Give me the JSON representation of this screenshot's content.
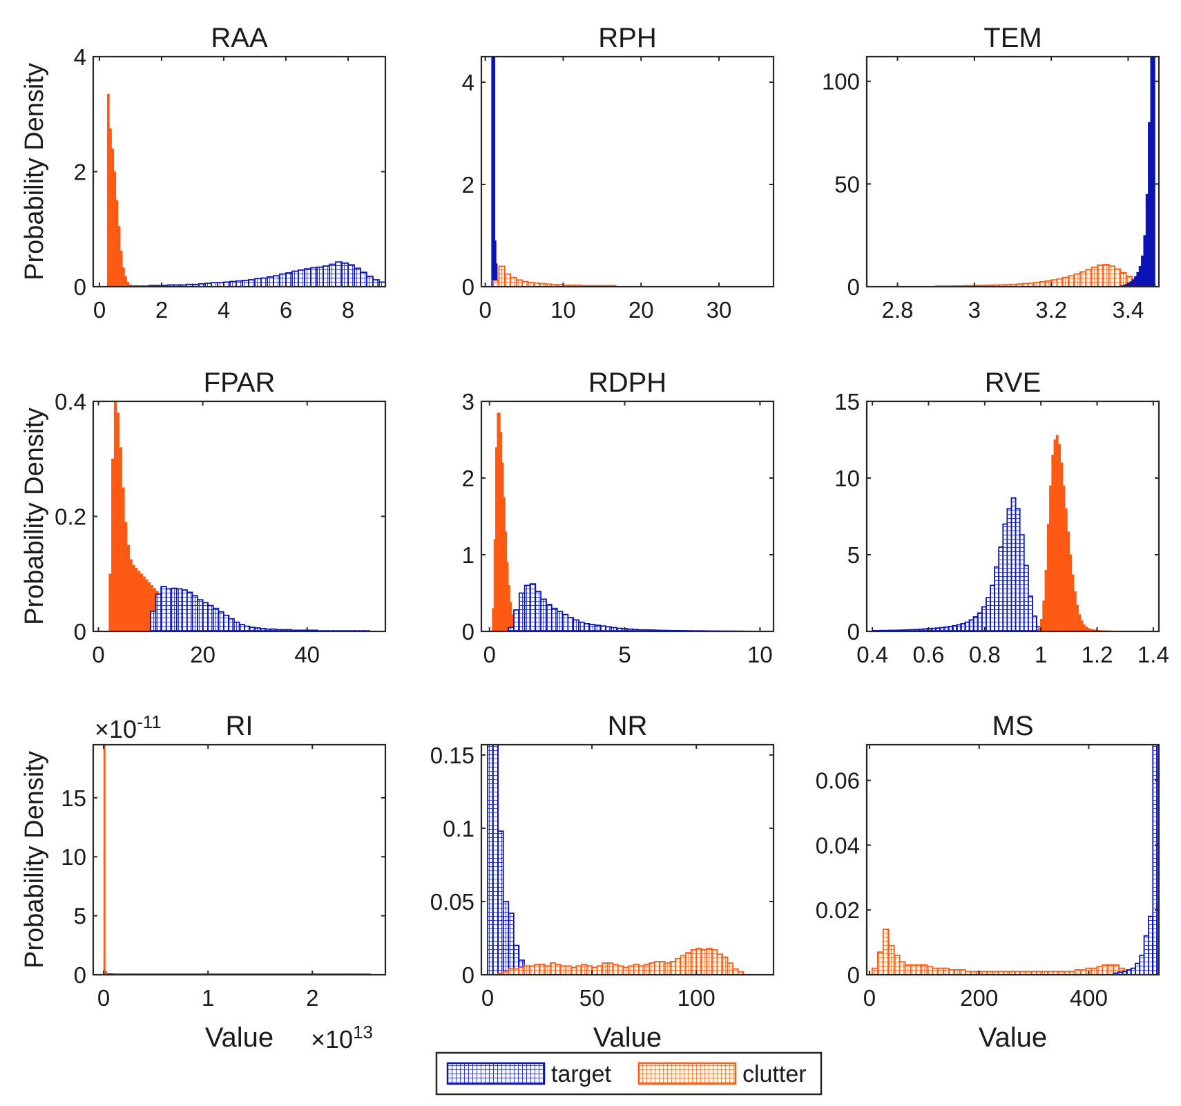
{
  "colors": {
    "target": "#0a14b4",
    "clutter": "#ff5a14",
    "axis": "#262626"
  },
  "legend": {
    "items": [
      "target",
      "clutter"
    ],
    "placement": "bottom-center"
  },
  "chart_data": [
    {
      "type": "histogram",
      "title": "RAA",
      "ylabel": "Probability Density",
      "xlabel": "",
      "xlim": [
        -0.2,
        9.2
      ],
      "ylim": [
        0,
        4
      ],
      "xticks": [
        0,
        2,
        4,
        6,
        8
      ],
      "xtick_labels": [
        "0",
        "2",
        "4",
        "6",
        "8"
      ],
      "yticks": [
        0,
        2,
        4
      ],
      "ytick_labels": [
        "0",
        "2",
        "4"
      ],
      "x_exponent": "",
      "y_exponent": "",
      "series": [
        {
          "name": "clutter",
          "style": "filled",
          "x0": 0.25,
          "bin": 0.07,
          "values": [
            3.35,
            2.75,
            2.4,
            2.0,
            1.5,
            1.05,
            0.62,
            0.33,
            0.18,
            0.08,
            0.03,
            0.01
          ]
        },
        {
          "name": "target",
          "style": "hatched",
          "x0": 1.0,
          "bin": 0.2,
          "values": [
            0.01,
            0.01,
            0.01,
            0.02,
            0.02,
            0.02,
            0.03,
            0.03,
            0.03,
            0.04,
            0.04,
            0.05,
            0.06,
            0.07,
            0.07,
            0.08,
            0.09,
            0.1,
            0.11,
            0.12,
            0.14,
            0.15,
            0.17,
            0.19,
            0.22,
            0.24,
            0.27,
            0.29,
            0.31,
            0.33,
            0.34,
            0.36,
            0.39,
            0.43,
            0.41,
            0.38,
            0.32,
            0.25,
            0.18,
            0.12,
            0.08,
            0.05,
            0.03,
            0.02
          ]
        }
      ]
    },
    {
      "type": "histogram",
      "title": "RPH",
      "ylabel": "",
      "xlabel": "",
      "xlim": [
        -0.5,
        37
      ],
      "ylim": [
        0,
        4.5
      ],
      "xticks": [
        0,
        10,
        20,
        30
      ],
      "xtick_labels": [
        "0",
        "10",
        "20",
        "30"
      ],
      "yticks": [
        0,
        2,
        4
      ],
      "ytick_labels": [
        "0",
        "2",
        "4"
      ],
      "x_exponent": "",
      "y_exponent": "",
      "series": [
        {
          "name": "target",
          "style": "filled",
          "x0": 0.8,
          "bin": 0.15,
          "values": [
            4.5,
            4.5,
            4.5,
            0.9,
            0.45
          ]
        },
        {
          "name": "clutter",
          "style": "hatched",
          "x0": 1.0,
          "bin": 0.75,
          "values": [
            0.12,
            0.4,
            0.25,
            0.18,
            0.13,
            0.1,
            0.08,
            0.07,
            0.06,
            0.05,
            0.04,
            0.04,
            0.03,
            0.03,
            0.03,
            0.02,
            0.02,
            0.02,
            0.02,
            0.02,
            0.02
          ]
        }
      ]
    },
    {
      "type": "histogram",
      "title": "TEM",
      "ylabel": "",
      "xlabel": "",
      "xlim": [
        2.72,
        3.48
      ],
      "ylim": [
        0,
        112
      ],
      "xticks": [
        2.8,
        3.0,
        3.2,
        3.4
      ],
      "xtick_labels": [
        "2.8",
        "3",
        "3.2",
        "3.4"
      ],
      "yticks": [
        0,
        50,
        100
      ],
      "ytick_labels": [
        "0",
        "50",
        "100"
      ],
      "x_exponent": "",
      "y_exponent": "",
      "series": [
        {
          "name": "clutter",
          "style": "hatched",
          "x0": 2.9,
          "bin": 0.015,
          "values": [
            0.3,
            0.3,
            0.3,
            0.4,
            0.4,
            0.5,
            0.5,
            0.6,
            0.6,
            0.7,
            0.8,
            0.9,
            1.0,
            1.1,
            1.3,
            1.5,
            1.7,
            2.0,
            2.4,
            2.8,
            3.3,
            3.8,
            4.5,
            5.3,
            6.2,
            7.2,
            8.3,
            9.5,
            10.5,
            10.8,
            10.0,
            8.6,
            6.8,
            5.0,
            3.5,
            2.4,
            1.6,
            1.0
          ]
        },
        {
          "name": "target",
          "style": "filled",
          "x0": 3.38,
          "bin": 0.006,
          "values": [
            0.5,
            0.8,
            1.2,
            1.8,
            2.5,
            3.5,
            5.0,
            7.0,
            10.0,
            15.0,
            25.0,
            45.0,
            80.0,
            112.0,
            112.0
          ]
        }
      ]
    },
    {
      "type": "histogram",
      "title": "FPAR",
      "ylabel": "Probability Density",
      "xlabel": "",
      "xlim": [
        -1,
        55
      ],
      "ylim": [
        0,
        0.4
      ],
      "xticks": [
        0,
        20,
        40
      ],
      "xtick_labels": [
        "0",
        "20",
        "40"
      ],
      "yticks": [
        0,
        0.2,
        0.4
      ],
      "ytick_labels": [
        "0",
        "0.2",
        "0.4"
      ],
      "x_exponent": "",
      "y_exponent": "",
      "series": [
        {
          "name": "clutter",
          "style": "filled",
          "x0": 2.0,
          "bin": 0.5,
          "values": [
            0.1,
            0.3,
            0.4,
            0.38,
            0.32,
            0.25,
            0.19,
            0.15,
            0.125,
            0.115,
            0.11,
            0.105,
            0.1,
            0.095,
            0.09,
            0.085,
            0.08,
            0.075,
            0.07,
            0.065,
            0.06,
            0.055,
            0.05,
            0.045,
            0.04,
            0.035,
            0.03,
            0.025,
            0.02,
            0.015,
            0.01,
            0.008,
            0.006,
            0.004,
            0.003,
            0.002
          ]
        },
        {
          "name": "target",
          "style": "hatched",
          "x0": 10.0,
          "bin": 1.0,
          "values": [
            0.035,
            0.065,
            0.078,
            0.074,
            0.075,
            0.074,
            0.072,
            0.068,
            0.062,
            0.055,
            0.05,
            0.045,
            0.04,
            0.034,
            0.028,
            0.022,
            0.016,
            0.012,
            0.009,
            0.007,
            0.006,
            0.005,
            0.004,
            0.004,
            0.003,
            0.003,
            0.003,
            0.002,
            0.002,
            0.002,
            0.002,
            0.002,
            0.001,
            0.001,
            0.001,
            0.001,
            0.001,
            0.001,
            0.001,
            0.001,
            0.001,
            0.001
          ]
        }
      ]
    },
    {
      "type": "histogram",
      "title": "RDPH",
      "ylabel": "",
      "xlabel": "",
      "xlim": [
        -0.3,
        10.5
      ],
      "ylim": [
        0,
        3
      ],
      "xticks": [
        0,
        5,
        10
      ],
      "xtick_labels": [
        "0",
        "5",
        "10"
      ],
      "yticks": [
        0,
        1,
        2,
        3
      ],
      "ytick_labels": [
        "0",
        "1",
        "2",
        "3"
      ],
      "x_exponent": "",
      "y_exponent": "",
      "series": [
        {
          "name": "clutter",
          "style": "filled",
          "x0": 0.1,
          "bin": 0.06,
          "values": [
            0.3,
            1.2,
            2.4,
            2.85,
            2.85,
            2.6,
            2.2,
            1.75,
            1.3,
            0.9,
            0.6,
            0.38,
            0.22,
            0.12,
            0.06,
            0.03,
            0.01
          ]
        },
        {
          "name": "target",
          "style": "hatched",
          "x0": 0.7,
          "bin": 0.2,
          "values": [
            0.05,
            0.28,
            0.5,
            0.6,
            0.62,
            0.52,
            0.42,
            0.35,
            0.3,
            0.26,
            0.22,
            0.18,
            0.15,
            0.12,
            0.1,
            0.09,
            0.08,
            0.07,
            0.06,
            0.05,
            0.04,
            0.035,
            0.03,
            0.025,
            0.02,
            0.02,
            0.018,
            0.015,
            0.013,
            0.012,
            0.01,
            0.01,
            0.009,
            0.008,
            0.007,
            0.007,
            0.006,
            0.005,
            0.005,
            0.004,
            0.004,
            0.003,
            0.003,
            0.002
          ]
        }
      ]
    },
    {
      "type": "histogram",
      "title": "RVE",
      "ylabel": "",
      "xlabel": "",
      "xlim": [
        0.38,
        1.42
      ],
      "ylim": [
        0,
        15
      ],
      "xticks": [
        0.4,
        0.6,
        0.8,
        1.0,
        1.2,
        1.4
      ],
      "xtick_labels": [
        "0.4",
        "0.6",
        "0.8",
        "1",
        "1.2",
        "1.4"
      ],
      "yticks": [
        0,
        5,
        10,
        15
      ],
      "ytick_labels": [
        "0",
        "5",
        "10",
        "15"
      ],
      "x_exponent": "",
      "y_exponent": "",
      "series": [
        {
          "name": "target",
          "style": "hatched",
          "x0": 0.4,
          "bin": 0.015,
          "values": [
            0.05,
            0.05,
            0.06,
            0.06,
            0.07,
            0.07,
            0.08,
            0.09,
            0.1,
            0.11,
            0.12,
            0.14,
            0.16,
            0.18,
            0.2,
            0.22,
            0.25,
            0.28,
            0.32,
            0.37,
            0.43,
            0.5,
            0.6,
            0.75,
            0.95,
            1.2,
            1.6,
            2.2,
            3.0,
            4.2,
            5.5,
            7.0,
            8.0,
            8.7,
            8.0,
            6.3,
            4.3,
            2.3,
            1.0,
            0.3
          ]
        },
        {
          "name": "clutter",
          "style": "filled",
          "x0": 0.99,
          "bin": 0.008,
          "values": [
            0.2,
            0.8,
            2.0,
            4.0,
            7.0,
            9.5,
            11.5,
            12.5,
            12.8,
            12.2,
            11.0,
            9.5,
            8.0,
            6.5,
            5.0,
            3.7,
            2.6,
            1.7,
            1.1,
            0.7,
            0.45,
            0.3,
            0.2,
            0.15,
            0.12,
            0.1,
            0.08,
            0.07,
            0.06,
            0.05,
            0.05,
            0.04,
            0.04,
            0.03,
            0.03,
            0.03,
            0.03,
            0.02,
            0.02,
            0.02,
            0.02,
            0.02,
            0.02,
            0.02,
            0.02,
            0.02,
            0.02,
            0.02,
            0.02
          ]
        }
      ]
    },
    {
      "type": "histogram",
      "title": "RI",
      "ylabel": "Probability Density",
      "xlabel": "Value",
      "xlim": [
        -0.1,
        2.7
      ],
      "ylim": [
        0,
        19.5
      ],
      "xticks": [
        0,
        1,
        2
      ],
      "xtick_labels": [
        "0",
        "1",
        "2"
      ],
      "yticks": [
        0,
        5,
        10,
        15
      ],
      "ytick_labels": [
        "0",
        "5",
        "10",
        "15"
      ],
      "x_exponent": "×10^13",
      "y_exponent": "×10^-11",
      "series": [
        {
          "name": "target",
          "style": "filled",
          "x0": 0.0,
          "bin": 0.02,
          "values": [
            0.05,
            0.08,
            0.1,
            0.1,
            0.09,
            0.08,
            0.08,
            0.08,
            0.08,
            0.08,
            0.08,
            0.08,
            0.08,
            0.08,
            0.08,
            0.08,
            0.08,
            0.08,
            0.08,
            0.08,
            0.08,
            0.08,
            0.08,
            0.08,
            0.08,
            0.08,
            0.08,
            0.08,
            0.08,
            0.08,
            0.08,
            0.08,
            0.08,
            0.08,
            0.08,
            0.08,
            0.08,
            0.08,
            0.08,
            0.08,
            0.08,
            0.08,
            0.08,
            0.08,
            0.08,
            0.08,
            0.08,
            0.08,
            0.08,
            0.08,
            0.08,
            0.08,
            0.08,
            0.08,
            0.08,
            0.08,
            0.08,
            0.08,
            0.08,
            0.08,
            0.08,
            0.08,
            0.08,
            0.08,
            0.08,
            0.08,
            0.08,
            0.08,
            0.08,
            0.08,
            0.08,
            0.08,
            0.08,
            0.08,
            0.08,
            0.08,
            0.08,
            0.08,
            0.08,
            0.08,
            0.08,
            0.08,
            0.08,
            0.08,
            0.08,
            0.08,
            0.08,
            0.08,
            0.08,
            0.08,
            0.08,
            0.08,
            0.08,
            0.08,
            0.08,
            0.08,
            0.08,
            0.08,
            0.08,
            0.08,
            0.08,
            0.08,
            0.08,
            0.08,
            0.08,
            0.08,
            0.08,
            0.08,
            0.08,
            0.08,
            0.08,
            0.08,
            0.08,
            0.08,
            0.08,
            0.08,
            0.08,
            0.08,
            0.08,
            0.08,
            0.08,
            0.08,
            0.08,
            0.08,
            0.08,
            0.08,
            0.08,
            0.08
          ]
        },
        {
          "name": "clutter",
          "style": "filled",
          "x0": 0.0,
          "bin": 0.015,
          "values": [
            19.5,
            0.3
          ]
        }
      ]
    },
    {
      "type": "histogram",
      "title": "NR",
      "ylabel": "",
      "xlabel": "Value",
      "xlim": [
        -3,
        137
      ],
      "ylim": [
        0,
        0.157
      ],
      "xticks": [
        0,
        50,
        100
      ],
      "xtick_labels": [
        "0",
        "50",
        "100"
      ],
      "yticks": [
        0,
        0.05,
        0.1,
        0.15
      ],
      "ytick_labels": [
        "0",
        "0.05",
        "0.1",
        "0.15"
      ],
      "x_exponent": "",
      "y_exponent": "",
      "series": [
        {
          "name": "target",
          "style": "hatched",
          "x0": 0.0,
          "bin": 2.5,
          "values": [
            0.157,
            0.157,
            0.098,
            0.05,
            0.042,
            0.02,
            0.01,
            0.005,
            0.003,
            0.002,
            0.002,
            0.001,
            0.001,
            0.001,
            0.001,
            0.001
          ]
        },
        {
          "name": "clutter",
          "style": "hatched",
          "x0": 5.0,
          "bin": 2.5,
          "values": [
            0.001,
            0.002,
            0.004,
            0.004,
            0.005,
            0.006,
            0.006,
            0.007,
            0.007,
            0.006,
            0.008,
            0.007,
            0.006,
            0.006,
            0.005,
            0.006,
            0.007,
            0.006,
            0.005,
            0.006,
            0.008,
            0.008,
            0.007,
            0.006,
            0.005,
            0.006,
            0.007,
            0.006,
            0.007,
            0.008,
            0.009,
            0.009,
            0.008,
            0.009,
            0.011,
            0.013,
            0.015,
            0.017,
            0.018,
            0.017,
            0.018,
            0.017,
            0.014,
            0.012,
            0.008,
            0.004,
            0.002
          ]
        }
      ]
    },
    {
      "type": "histogram",
      "title": "MS",
      "ylabel": "",
      "xlabel": "Value",
      "xlim": [
        -5,
        528
      ],
      "ylim": [
        0,
        0.071
      ],
      "xticks": [
        0,
        200,
        400
      ],
      "xtick_labels": [
        "0",
        "200",
        "400"
      ],
      "yticks": [
        0,
        0.02,
        0.04,
        0.06
      ],
      "ytick_labels": [
        "0",
        "0.02",
        "0.04",
        "0.06"
      ],
      "x_exponent": "",
      "y_exponent": "",
      "series": [
        {
          "name": "clutter",
          "style": "hatched",
          "x0": 5.0,
          "bin": 10.0,
          "values": [
            0.002,
            0.007,
            0.014,
            0.009,
            0.006,
            0.004,
            0.003,
            0.003,
            0.003,
            0.003,
            0.0025,
            0.002,
            0.002,
            0.002,
            0.0015,
            0.0015,
            0.0015,
            0.001,
            0.001,
            0.001,
            0.001,
            0.001,
            0.001,
            0.001,
            0.001,
            0.001,
            0.001,
            0.001,
            0.001,
            0.001,
            0.001,
            0.001,
            0.001,
            0.001,
            0.001,
            0.001,
            0.001,
            0.0015,
            0.0015,
            0.002,
            0.002,
            0.0025,
            0.003,
            0.003,
            0.003,
            0.002,
            0.001,
            0.001
          ]
        },
        {
          "name": "target",
          "style": "hatched",
          "x0": 445.0,
          "bin": 8.0,
          "values": [
            0.0005,
            0.0008,
            0.001,
            0.0015,
            0.002,
            0.0035,
            0.006,
            0.012,
            0.018,
            0.071
          ]
        }
      ]
    }
  ]
}
